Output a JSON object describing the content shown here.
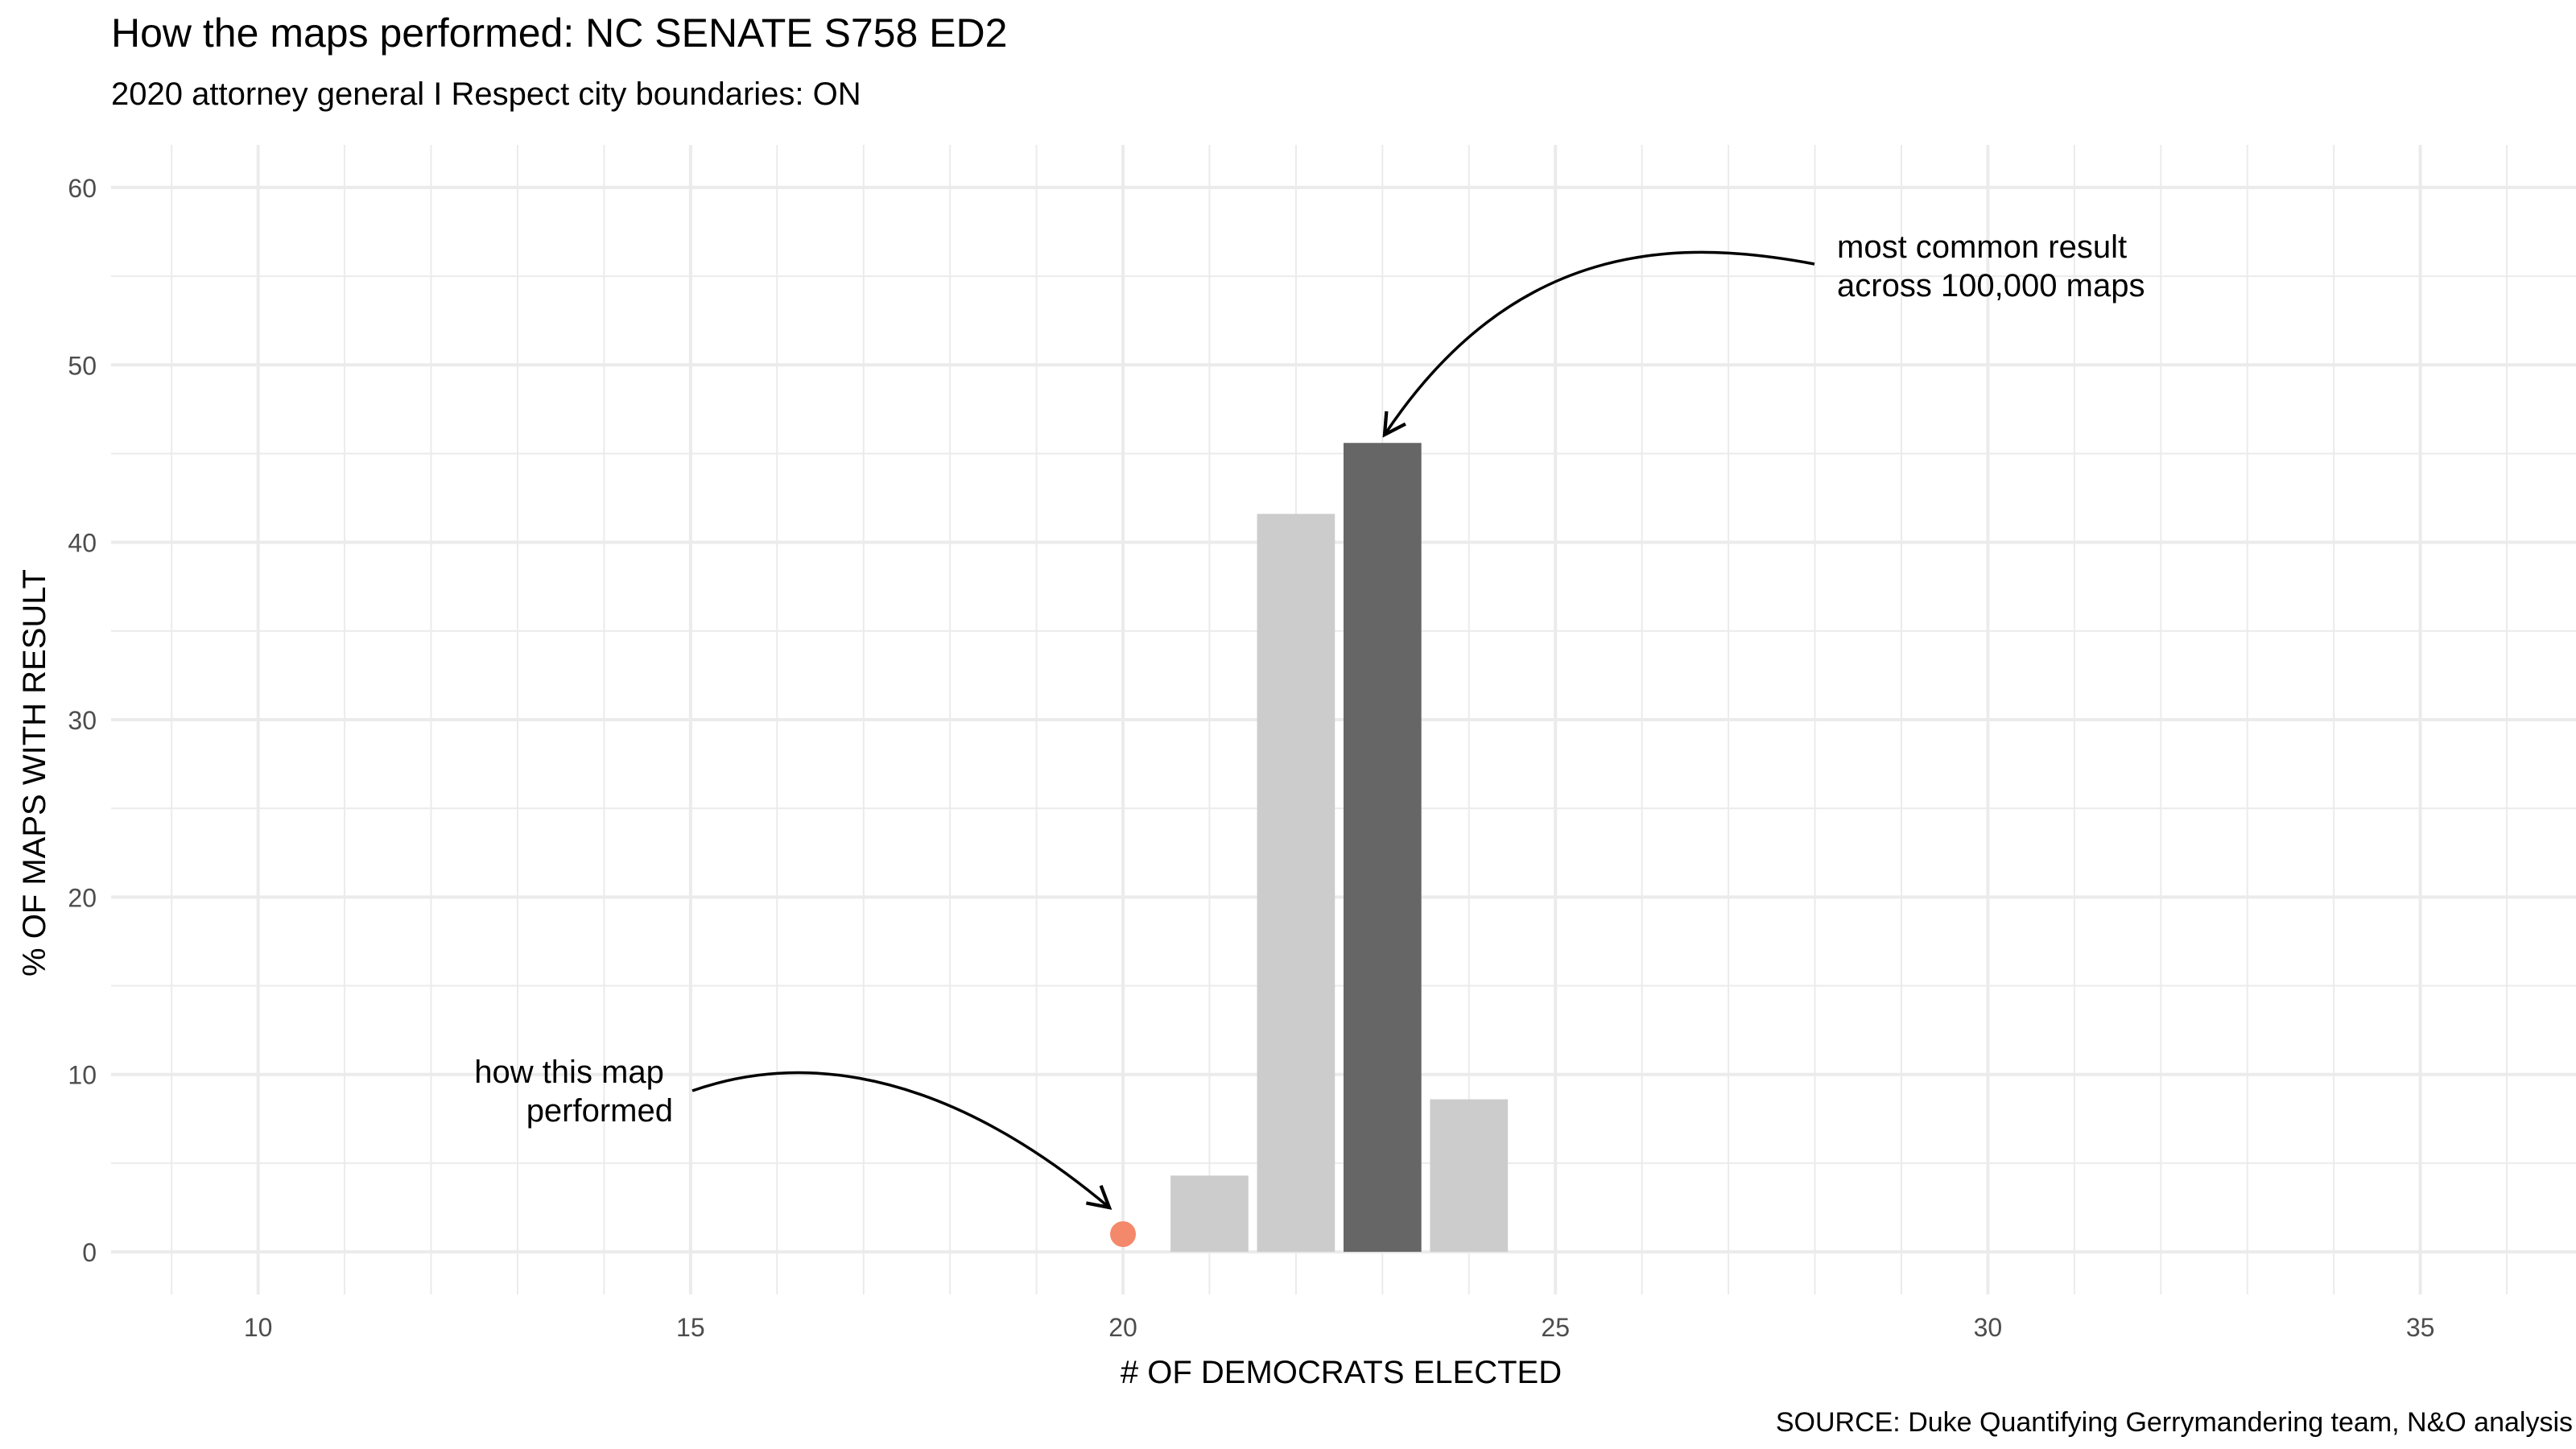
{
  "chart_data": {
    "type": "bar",
    "title": "How the maps performed: NC SENATE S758 ED2",
    "subtitle": "2020 attorney general I Respect city boundaries: ON",
    "xlabel": "# OF DEMOCRATS ELECTED",
    "ylabel": "% OF MAPS WITH RESULT",
    "caption": "SOURCE: Duke Quantifying Gerrymandering team, N&O analysis",
    "xlim": [
      8.3,
      36.8
    ],
    "ylim": [
      -2.4,
      62.4
    ],
    "xticks": [
      10,
      15,
      20,
      25,
      30,
      35
    ],
    "yticks": [
      0,
      10,
      20,
      30,
      40,
      50,
      60
    ],
    "grid": true,
    "bars": [
      {
        "x": 21,
        "value": 4.3,
        "highlight": false
      },
      {
        "x": 22,
        "value": 41.6,
        "highlight": false
      },
      {
        "x": 23,
        "value": 45.6,
        "highlight": true
      },
      {
        "x": 24,
        "value": 8.6,
        "highlight": false
      }
    ],
    "point": {
      "x": 20,
      "y": 1.0
    },
    "annotations": [
      {
        "id": "most-common",
        "lines": [
          "most common result",
          "across 100,000 maps"
        ]
      },
      {
        "id": "this-map",
        "lines": [
          "how this map",
          "performed"
        ]
      }
    ],
    "colors": {
      "bar": "#cccccc",
      "bar_highlight": "#666666",
      "point": "#f4886b",
      "grid": "#ebebeb",
      "axis_text": "#4d4d4d",
      "text": "#000000"
    }
  }
}
